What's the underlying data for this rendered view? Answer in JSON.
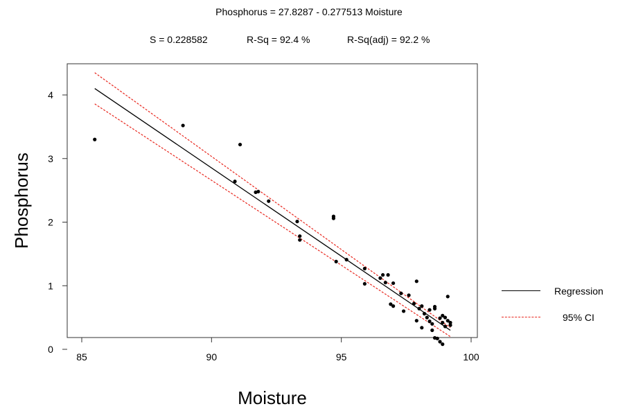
{
  "header": {
    "equation": "Phosphorus = 27.8287 - 0.277513 Moisture",
    "s_stat": "S = 0.228582",
    "rsq_stat": "R-Sq = 92.4 %",
    "rsq_adj_stat": "R-Sq(adj) = 92.2 %"
  },
  "legend": {
    "regression": "Regression",
    "ci": "95% CI"
  },
  "colors": {
    "regression": "#000000",
    "ci": "#e8261d",
    "points": "#000000"
  },
  "chart_data": {
    "type": "scatter",
    "xlabel": "Moisture",
    "ylabel": "Phosphorus",
    "xlim": [
      85,
      100
    ],
    "ylim": [
      0,
      4.4
    ],
    "xticks": [
      "85",
      "90",
      "95",
      "100"
    ],
    "yticks": [
      "0",
      "1",
      "2",
      "3",
      "4"
    ],
    "grid": false,
    "legend_position": "right",
    "regression": {
      "intercept": 27.8287,
      "slope": -0.277513,
      "x_range": [
        85.5,
        99.2
      ]
    },
    "ci_upper": [
      [
        85.5,
        4.35
      ],
      [
        99.2,
        0.34
      ]
    ],
    "ci_lower": [
      [
        85.5,
        3.86
      ],
      [
        99.2,
        0.2
      ]
    ],
    "points": [
      [
        85.5,
        3.3
      ],
      [
        88.9,
        3.52
      ],
      [
        90.9,
        2.64
      ],
      [
        91.1,
        3.22
      ],
      [
        91.7,
        2.47
      ],
      [
        91.8,
        2.48
      ],
      [
        92.2,
        2.33
      ],
      [
        93.3,
        2.01
      ],
      [
        93.4,
        1.78
      ],
      [
        93.4,
        1.72
      ],
      [
        94.7,
        2.09
      ],
      [
        94.7,
        2.06
      ],
      [
        94.8,
        1.38
      ],
      [
        95.2,
        1.41
      ],
      [
        95.9,
        1.27
      ],
      [
        95.9,
        1.03
      ],
      [
        96.5,
        1.12
      ],
      [
        96.6,
        1.17
      ],
      [
        96.7,
        1.05
      ],
      [
        96.8,
        1.17
      ],
      [
        96.9,
        0.71
      ],
      [
        97.0,
        0.68
      ],
      [
        97.0,
        1.04
      ],
      [
        97.3,
        0.88
      ],
      [
        97.4,
        0.6
      ],
      [
        97.6,
        0.85
      ],
      [
        97.8,
        0.72
      ],
      [
        97.9,
        1.07
      ],
      [
        97.9,
        0.45
      ],
      [
        98.0,
        0.64
      ],
      [
        98.1,
        0.68
      ],
      [
        98.1,
        0.34
      ],
      [
        98.2,
        0.56
      ],
      [
        98.3,
        0.5
      ],
      [
        98.4,
        0.44
      ],
      [
        98.4,
        0.62
      ],
      [
        98.5,
        0.4
      ],
      [
        98.5,
        0.3
      ],
      [
        98.6,
        0.67
      ],
      [
        98.6,
        0.64
      ],
      [
        98.6,
        0.18
      ],
      [
        98.7,
        0.17
      ],
      [
        98.8,
        0.49
      ],
      [
        98.8,
        0.12
      ],
      [
        98.9,
        0.42
      ],
      [
        98.9,
        0.08
      ],
      [
        98.9,
        0.53
      ],
      [
        99.0,
        0.36
      ],
      [
        99.0,
        0.5
      ],
      [
        99.1,
        0.83
      ],
      [
        99.1,
        0.45
      ],
      [
        99.2,
        0.38
      ],
      [
        99.2,
        0.42
      ]
    ]
  }
}
